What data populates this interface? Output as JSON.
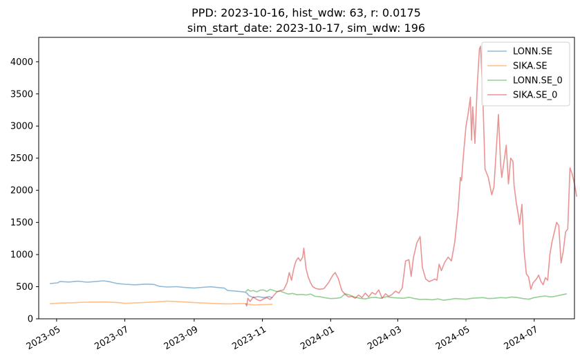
{
  "chart_data": {
    "type": "line",
    "title_line1": "PPD: 2023-10-16, hist_wdw: 63, r: 0.0175",
    "title_line2": "sim_start_date: 2023-10-17, sim_wdw: 196",
    "xlabel": "",
    "ylabel": "",
    "x_range": [
      "2023-04-15",
      "2024-08-06"
    ],
    "ylim": [
      0,
      4380
    ],
    "x_ticks": [
      {
        "date": "2023-05-01",
        "label": "2023-05"
      },
      {
        "date": "2023-07-01",
        "label": "2023-07"
      },
      {
        "date": "2023-09-01",
        "label": "2023-09"
      },
      {
        "date": "2023-11-01",
        "label": "2023-11"
      },
      {
        "date": "2024-01-01",
        "label": "2024-01"
      },
      {
        "date": "2024-03-01",
        "label": "2024-03"
      },
      {
        "date": "2024-05-01",
        "label": "2024-05"
      },
      {
        "date": "2024-07-01",
        "label": "2024-07"
      }
    ],
    "y_ticks": [
      0,
      500,
      1000,
      1500,
      2000,
      2500,
      3000,
      3500,
      4000
    ],
    "grid": false,
    "legend_position": "top-right",
    "series": [
      {
        "name": "LONN.SE",
        "color": "#1f77b4",
        "points": [
          [
            "2023-04-25",
            548
          ],
          [
            "2023-05-02",
            560
          ],
          [
            "2023-05-04",
            580
          ],
          [
            "2023-05-12",
            572
          ],
          [
            "2023-05-20",
            585
          ],
          [
            "2023-05-28",
            570
          ],
          [
            "2023-06-05",
            580
          ],
          [
            "2023-06-12",
            592
          ],
          [
            "2023-06-18",
            575
          ],
          [
            "2023-06-24",
            550
          ],
          [
            "2023-07-01",
            538
          ],
          [
            "2023-07-10",
            530
          ],
          [
            "2023-07-20",
            540
          ],
          [
            "2023-07-27",
            535
          ],
          [
            "2023-08-01",
            505
          ],
          [
            "2023-08-08",
            495
          ],
          [
            "2023-08-16",
            500
          ],
          [
            "2023-08-24",
            488
          ],
          [
            "2023-09-01",
            478
          ],
          [
            "2023-09-08",
            490
          ],
          [
            "2023-09-16",
            498
          ],
          [
            "2023-09-22",
            488
          ],
          [
            "2023-09-28",
            478
          ],
          [
            "2023-10-01",
            440
          ],
          [
            "2023-10-08",
            432
          ],
          [
            "2023-10-16",
            418
          ],
          [
            "2023-10-18",
            400
          ],
          [
            "2023-10-20",
            360
          ],
          [
            "2023-10-24",
            330
          ],
          [
            "2023-10-28",
            345
          ],
          [
            "2023-11-02",
            330
          ],
          [
            "2023-11-07",
            345
          ],
          [
            "2023-11-10",
            325
          ]
        ]
      },
      {
        "name": "SIKA.SE",
        "color": "#ff7f0e",
        "points": [
          [
            "2023-04-25",
            235
          ],
          [
            "2023-05-05",
            245
          ],
          [
            "2023-05-15",
            250
          ],
          [
            "2023-05-25",
            258
          ],
          [
            "2023-06-05",
            260
          ],
          [
            "2023-06-15",
            262
          ],
          [
            "2023-06-25",
            252
          ],
          [
            "2023-07-01",
            240
          ],
          [
            "2023-07-10",
            248
          ],
          [
            "2023-07-20",
            255
          ],
          [
            "2023-07-30",
            265
          ],
          [
            "2023-08-08",
            275
          ],
          [
            "2023-08-16",
            268
          ],
          [
            "2023-08-24",
            262
          ],
          [
            "2023-09-01",
            252
          ],
          [
            "2023-09-10",
            245
          ],
          [
            "2023-09-20",
            238
          ],
          [
            "2023-09-30",
            232
          ],
          [
            "2023-10-08",
            235
          ],
          [
            "2023-10-16",
            238
          ],
          [
            "2023-10-20",
            225
          ],
          [
            "2023-10-25",
            215
          ],
          [
            "2023-10-30",
            220
          ],
          [
            "2023-11-05",
            222
          ],
          [
            "2023-11-10",
            225
          ]
        ]
      },
      {
        "name": "LONN.SE_0",
        "color": "#2ca02c",
        "points": [
          [
            "2023-10-17",
            418
          ],
          [
            "2023-10-19",
            455
          ],
          [
            "2023-10-21",
            430
          ],
          [
            "2023-10-24",
            440
          ],
          [
            "2023-10-27",
            420
          ],
          [
            "2023-10-30",
            445
          ],
          [
            "2023-11-02",
            450
          ],
          [
            "2023-11-05",
            425
          ],
          [
            "2023-11-08",
            460
          ],
          [
            "2023-11-11",
            440
          ],
          [
            "2023-11-14",
            425
          ],
          [
            "2023-11-17",
            430
          ],
          [
            "2023-11-20",
            410
          ],
          [
            "2023-11-24",
            385
          ],
          [
            "2023-11-28",
            395
          ],
          [
            "2023-12-02",
            375
          ],
          [
            "2023-12-06",
            380
          ],
          [
            "2023-12-10",
            370
          ],
          [
            "2023-12-14",
            385
          ],
          [
            "2023-12-18",
            350
          ],
          [
            "2023-12-22",
            345
          ],
          [
            "2023-12-26",
            330
          ],
          [
            "2024-01-01",
            315
          ],
          [
            "2024-01-06",
            320
          ],
          [
            "2024-01-10",
            330
          ],
          [
            "2024-01-14",
            390
          ],
          [
            "2024-01-18",
            370
          ],
          [
            "2024-01-22",
            340
          ],
          [
            "2024-01-27",
            320
          ],
          [
            "2024-02-01",
            310
          ],
          [
            "2024-02-06",
            330
          ],
          [
            "2024-02-10",
            335
          ],
          [
            "2024-02-15",
            320
          ],
          [
            "2024-02-20",
            345
          ],
          [
            "2024-02-25",
            330
          ],
          [
            "2024-03-01",
            325
          ],
          [
            "2024-03-06",
            320
          ],
          [
            "2024-03-11",
            335
          ],
          [
            "2024-03-16",
            315
          ],
          [
            "2024-03-21",
            300
          ],
          [
            "2024-03-26",
            305
          ],
          [
            "2024-04-01",
            295
          ],
          [
            "2024-04-06",
            310
          ],
          [
            "2024-04-11",
            290
          ],
          [
            "2024-04-16",
            300
          ],
          [
            "2024-04-21",
            315
          ],
          [
            "2024-04-26",
            310
          ],
          [
            "2024-05-01",
            305
          ],
          [
            "2024-05-06",
            320
          ],
          [
            "2024-05-11",
            325
          ],
          [
            "2024-05-16",
            330
          ],
          [
            "2024-05-21",
            315
          ],
          [
            "2024-05-26",
            320
          ],
          [
            "2024-06-01",
            330
          ],
          [
            "2024-06-06",
            325
          ],
          [
            "2024-06-11",
            340
          ],
          [
            "2024-06-16",
            330
          ],
          [
            "2024-06-21",
            315
          ],
          [
            "2024-06-26",
            305
          ],
          [
            "2024-07-01",
            330
          ],
          [
            "2024-07-06",
            345
          ],
          [
            "2024-07-11",
            355
          ],
          [
            "2024-07-16",
            340
          ],
          [
            "2024-07-21",
            355
          ],
          [
            "2024-07-26",
            375
          ],
          [
            "2024-07-30",
            390
          ]
        ]
      },
      {
        "name": "SIKA.SE_0",
        "color": "#d62728",
        "points": [
          [
            "2023-10-17",
            238
          ],
          [
            "2023-10-18",
            200
          ],
          [
            "2023-10-19",
            320
          ],
          [
            "2023-10-21",
            270
          ],
          [
            "2023-10-24",
            340
          ],
          [
            "2023-10-27",
            300
          ],
          [
            "2023-10-30",
            280
          ],
          [
            "2023-11-02",
            310
          ],
          [
            "2023-11-05",
            330
          ],
          [
            "2023-11-08",
            300
          ],
          [
            "2023-11-11",
            360
          ],
          [
            "2023-11-14",
            420
          ],
          [
            "2023-11-17",
            440
          ],
          [
            "2023-11-20",
            450
          ],
          [
            "2023-11-23",
            560
          ],
          [
            "2023-11-25",
            720
          ],
          [
            "2023-11-27",
            600
          ],
          [
            "2023-11-29",
            780
          ],
          [
            "2023-12-01",
            900
          ],
          [
            "2023-12-03",
            950
          ],
          [
            "2023-12-05",
            900
          ],
          [
            "2023-12-07",
            960
          ],
          [
            "2023-12-08",
            1100
          ],
          [
            "2023-12-10",
            780
          ],
          [
            "2023-12-12",
            650
          ],
          [
            "2023-12-14",
            560
          ],
          [
            "2023-12-16",
            500
          ],
          [
            "2023-12-19",
            470
          ],
          [
            "2023-12-22",
            460
          ],
          [
            "2023-12-26",
            470
          ],
          [
            "2023-12-30",
            560
          ],
          [
            "2024-01-03",
            680
          ],
          [
            "2024-01-05",
            720
          ],
          [
            "2024-01-08",
            620
          ],
          [
            "2024-01-11",
            440
          ],
          [
            "2024-01-14",
            380
          ],
          [
            "2024-01-17",
            340
          ],
          [
            "2024-01-20",
            350
          ],
          [
            "2024-01-23",
            320
          ],
          [
            "2024-01-26",
            370
          ],
          [
            "2024-01-29",
            330
          ],
          [
            "2024-02-01",
            400
          ],
          [
            "2024-02-04",
            340
          ],
          [
            "2024-02-07",
            410
          ],
          [
            "2024-02-10",
            380
          ],
          [
            "2024-02-13",
            450
          ],
          [
            "2024-02-16",
            320
          ],
          [
            "2024-02-19",
            390
          ],
          [
            "2024-02-22",
            350
          ],
          [
            "2024-02-25",
            380
          ],
          [
            "2024-02-28",
            430
          ],
          [
            "2024-03-02",
            400
          ],
          [
            "2024-03-05",
            480
          ],
          [
            "2024-03-08",
            900
          ],
          [
            "2024-03-11",
            920
          ],
          [
            "2024-03-13",
            660
          ],
          [
            "2024-03-15",
            950
          ],
          [
            "2024-03-18",
            1180
          ],
          [
            "2024-03-21",
            1280
          ],
          [
            "2024-03-23",
            800
          ],
          [
            "2024-03-26",
            620
          ],
          [
            "2024-03-29",
            580
          ],
          [
            "2024-04-01",
            600
          ],
          [
            "2024-04-03",
            620
          ],
          [
            "2024-04-05",
            600
          ],
          [
            "2024-04-07",
            850
          ],
          [
            "2024-04-09",
            750
          ],
          [
            "2024-04-12",
            880
          ],
          [
            "2024-04-15",
            960
          ],
          [
            "2024-04-18",
            900
          ],
          [
            "2024-04-21",
            1200
          ],
          [
            "2024-04-24",
            1700
          ],
          [
            "2024-04-26",
            2200
          ],
          [
            "2024-04-27",
            2150
          ],
          [
            "2024-04-29",
            2600
          ],
          [
            "2024-05-01",
            3000
          ],
          [
            "2024-05-03",
            3200
          ],
          [
            "2024-05-05",
            3450
          ],
          [
            "2024-05-06",
            2780
          ],
          [
            "2024-05-07",
            3300
          ],
          [
            "2024-05-09",
            2730
          ],
          [
            "2024-05-11",
            3600
          ],
          [
            "2024-05-13",
            4200
          ],
          [
            "2024-05-14",
            4240
          ],
          [
            "2024-05-16",
            3500
          ],
          [
            "2024-05-18",
            2330
          ],
          [
            "2024-05-21",
            2200
          ],
          [
            "2024-05-24",
            1930
          ],
          [
            "2024-05-26",
            2050
          ],
          [
            "2024-05-28",
            2600
          ],
          [
            "2024-05-30",
            3180
          ],
          [
            "2024-06-01",
            2400
          ],
          [
            "2024-06-02",
            2200
          ],
          [
            "2024-06-04",
            2450
          ],
          [
            "2024-06-06",
            2700
          ],
          [
            "2024-06-08",
            2100
          ],
          [
            "2024-06-10",
            2500
          ],
          [
            "2024-06-12",
            2450
          ],
          [
            "2024-06-13",
            2080
          ],
          [
            "2024-06-15",
            1800
          ],
          [
            "2024-06-17",
            1600
          ],
          [
            "2024-06-18",
            1470
          ],
          [
            "2024-06-20",
            1780
          ],
          [
            "2024-06-22",
            1050
          ],
          [
            "2024-06-24",
            700
          ],
          [
            "2024-06-26",
            650
          ],
          [
            "2024-06-28",
            460
          ],
          [
            "2024-06-30",
            560
          ],
          [
            "2024-07-03",
            620
          ],
          [
            "2024-07-05",
            680
          ],
          [
            "2024-07-07",
            580
          ],
          [
            "2024-07-09",
            530
          ],
          [
            "2024-07-11",
            640
          ],
          [
            "2024-07-13",
            600
          ],
          [
            "2024-07-15",
            1000
          ],
          [
            "2024-07-17",
            1200
          ],
          [
            "2024-07-19",
            1350
          ],
          [
            "2024-07-21",
            1500
          ],
          [
            "2024-07-23",
            1450
          ],
          [
            "2024-07-25",
            870
          ],
          [
            "2024-07-27",
            1050
          ],
          [
            "2024-07-29",
            1350
          ],
          [
            "2024-07-31",
            1400
          ],
          [
            "2024-08-02",
            2350
          ],
          [
            "2024-08-04",
            2250
          ],
          [
            "2024-08-06",
            2100
          ],
          [
            "2024-08-08",
            1900
          ]
        ]
      }
    ]
  }
}
